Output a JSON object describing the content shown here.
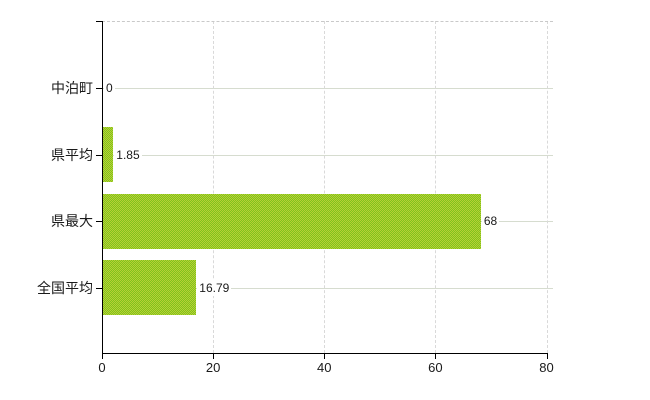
{
  "chart_data": {
    "type": "bar",
    "orientation": "horizontal",
    "title": "",
    "categories": [
      "中泊町",
      "県平均",
      "県最大",
      "全国平均"
    ],
    "values": [
      0,
      1.85,
      68,
      16.79
    ],
    "value_labels": [
      "0",
      "1.85",
      "68",
      "16.79"
    ],
    "x_tick_labels": [
      "0",
      "20",
      "40",
      "60",
      "80"
    ],
    "x_tick_values": [
      0,
      20,
      40,
      60,
      80
    ],
    "xlim": [
      0,
      80
    ],
    "grid": true,
    "legend": false,
    "bar_color": "#9cc929",
    "bar_pattern_colors": [
      "#7fc41c",
      "#b9cf36"
    ],
    "axis_color": "#000000",
    "horizontal_gridline_color": "#d6dccf",
    "vertical_gridline_color": "#d9d9d9",
    "plot_top_border_color": "#c9c9c9",
    "text_color": "#1a1a1a",
    "background_color": "#ffffff"
  }
}
